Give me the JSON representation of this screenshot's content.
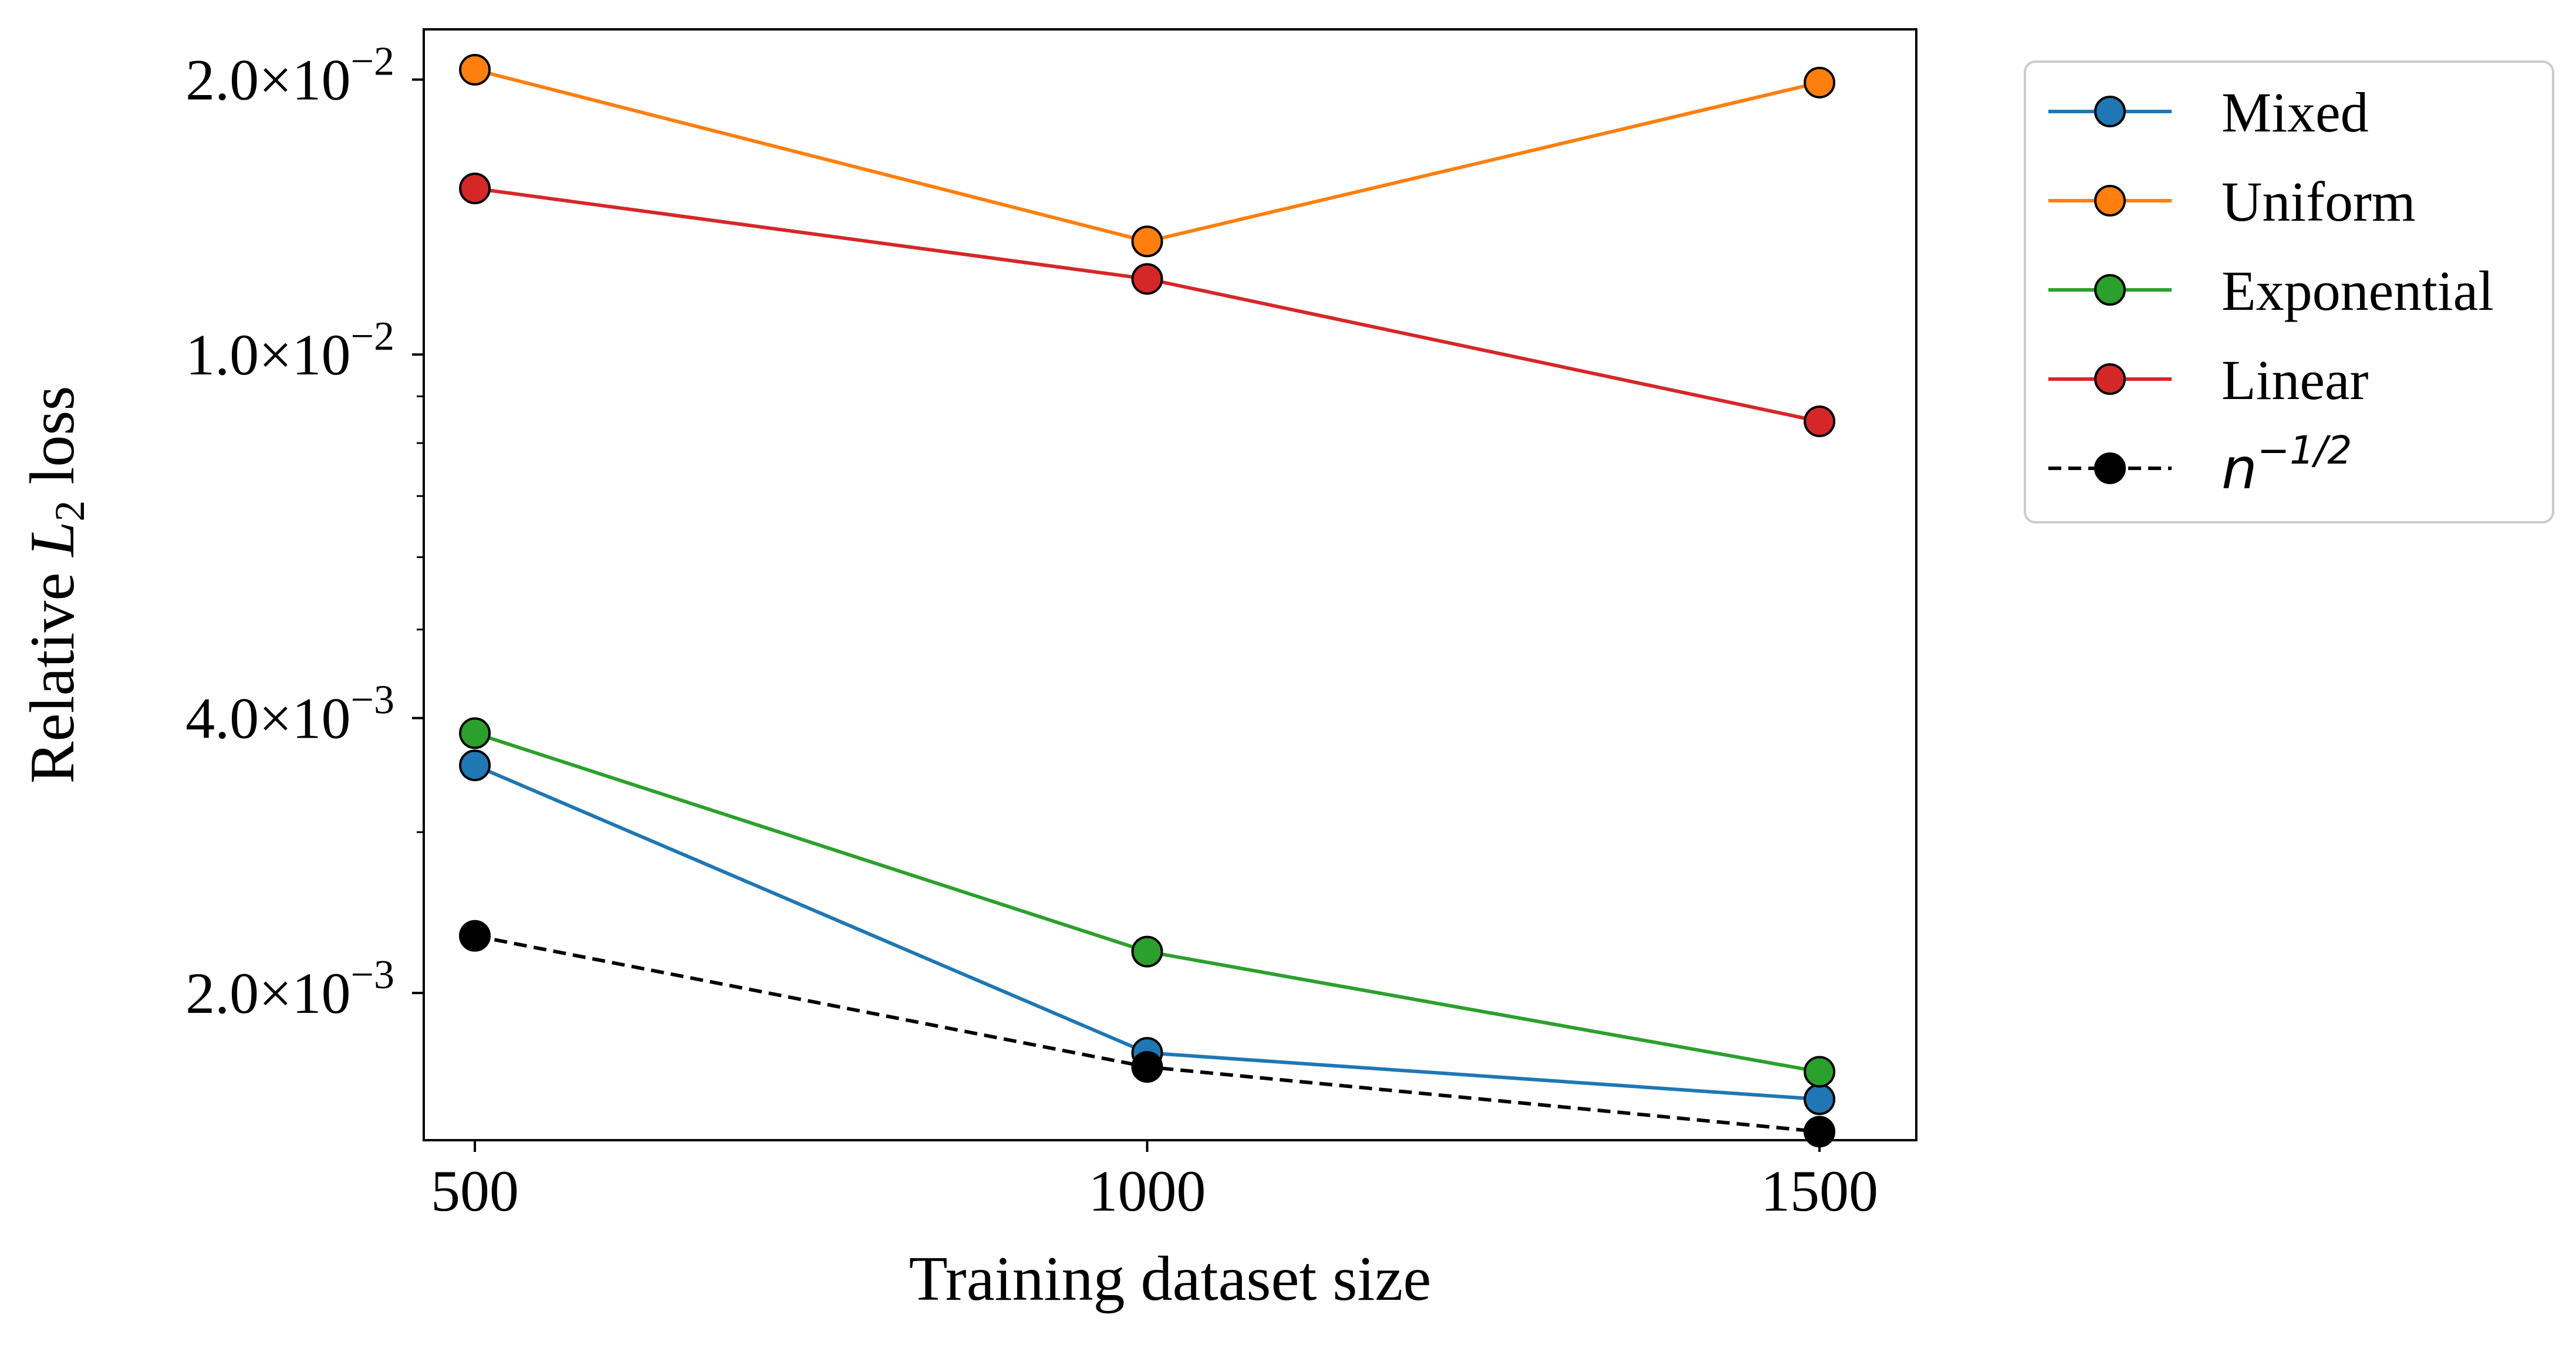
{
  "chart_data": {
    "type": "line",
    "x": [
      500,
      1000,
      1500
    ],
    "xlabel": "Training dataset size",
    "ylabel_main": "Relative ",
    "ylabel_math": "L",
    "ylabel_sub": "2",
    "ylabel_tail": " loss",
    "yscale": "log",
    "xlim": [
      462,
      1572
    ],
    "ylim": [
      0.00138,
      0.0227
    ],
    "grid": false,
    "legend_placement": "outside-upper-right",
    "x_ticks": [
      {
        "value": 500,
        "label": "500"
      },
      {
        "value": 1000,
        "label": "1000"
      },
      {
        "value": 1500,
        "label": "1500"
      }
    ],
    "y_ticks": [
      {
        "value": 0.02,
        "mant": "2.0",
        "exp": "−2"
      },
      {
        "value": 0.01,
        "mant": "1.0",
        "exp": "−2"
      },
      {
        "value": 0.004,
        "mant": "4.0",
        "exp": "−3"
      },
      {
        "value": 0.002,
        "mant": "2.0",
        "exp": "−3"
      }
    ],
    "series": [
      {
        "name": "Mixed",
        "values": [
          0.00355,
          0.00172,
          0.00153
        ],
        "color": "#1f77b4",
        "dashed": false
      },
      {
        "name": "Uniform",
        "values": [
          0.0205,
          0.0133,
          0.01985
        ],
        "color": "#ff7f0e",
        "dashed": false
      },
      {
        "name": "Exponential",
        "values": [
          0.00385,
          0.00222,
          0.00164
        ],
        "color": "#2ca02c",
        "dashed": false
      },
      {
        "name": "Linear",
        "values": [
          0.0152,
          0.0121,
          0.00845
        ],
        "color": "#d62728",
        "dashed": false
      },
      {
        "name": "n^{-1/2}",
        "values": [
          0.00231,
          0.00166,
          0.00141
        ],
        "color": "#000000",
        "dashed": true
      }
    ]
  }
}
